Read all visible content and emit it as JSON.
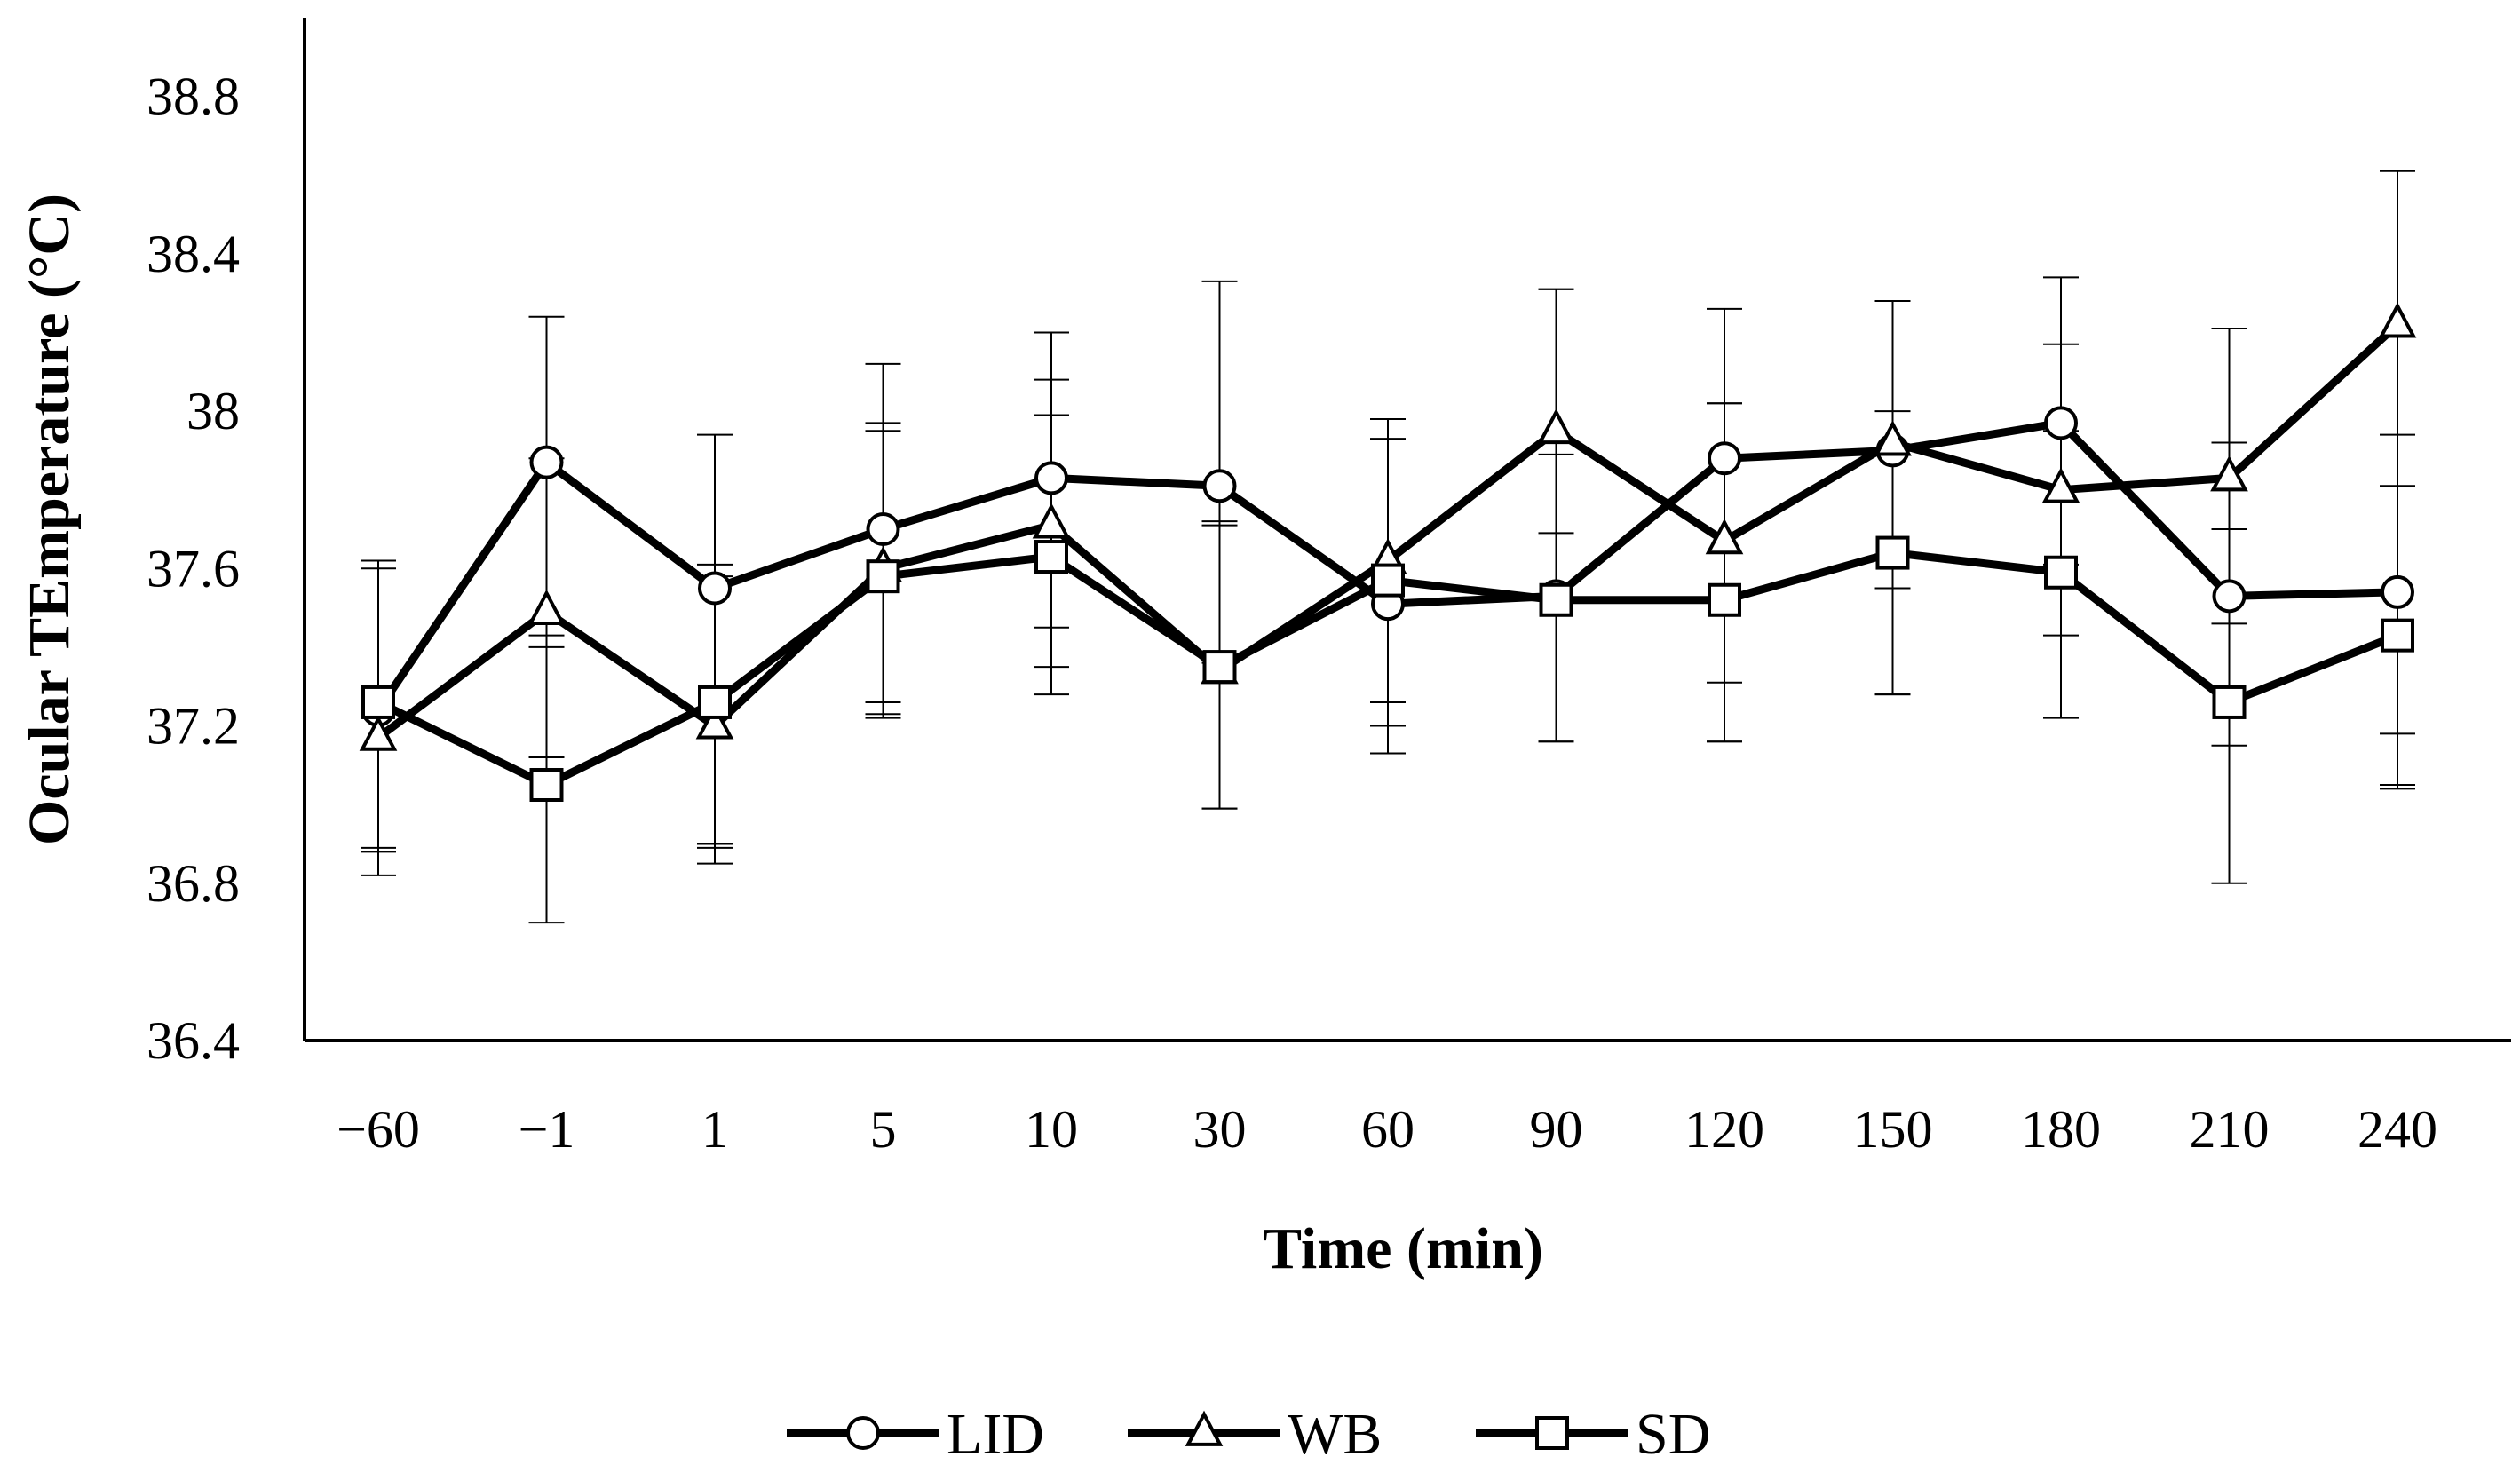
{
  "chart_data": {
    "type": "line",
    "title": "",
    "xlabel": "Time (min)",
    "ylabel": "Ocular TEmperature (°C)",
    "categories": [
      "−60",
      "−1",
      "1",
      "5",
      "10",
      "30",
      "60",
      "90",
      "120",
      "150",
      "180",
      "210",
      "240"
    ],
    "ylim": [
      36.4,
      39.0
    ],
    "yticks": [
      "36.4",
      "36.8",
      "37.2",
      "37.6",
      "38",
      "38.4",
      "38.8"
    ],
    "ytick_values": [
      36.4,
      36.8,
      37.2,
      37.6,
      38.0,
      38.4,
      38.8
    ],
    "grid": false,
    "legend_position": "bottom-center",
    "series": [
      {
        "name": "LID",
        "marker": "circle",
        "values": [
          37.24,
          37.87,
          37.55,
          37.7,
          37.83,
          37.81,
          37.51,
          37.53,
          37.88,
          37.9,
          37.97,
          37.53,
          37.54
        ],
        "err_low": [
          36.82,
          37.43,
          36.9,
          37.26,
          37.45,
          37.36,
          37.13,
          37.16,
          37.31,
          37.55,
          37.61,
          37.15,
          37.18
        ],
        "err_high": [
          37.62,
          38.24,
          37.94,
          38.12,
          38.2,
          38.33,
          37.98,
          38.31,
          38.26,
          38.28,
          38.34,
          38.21,
          37.94
        ]
      },
      {
        "name": "WB",
        "marker": "triangle",
        "values": [
          37.17,
          37.49,
          37.2,
          37.6,
          37.71,
          37.34,
          37.62,
          37.95,
          37.67,
          37.92,
          37.8,
          37.83,
          38.22
        ],
        "err_low": [
          36.89,
          37.12,
          36.85,
          37.22,
          37.35,
          36.99,
          37.26,
          37.69,
          37.16,
          37.28,
          37.43,
          37.46,
          37.05
        ],
        "err_high": [
          37.6,
          37.88,
          37.58,
          37.97,
          38.08,
          37.71,
          37.98,
          38.31,
          38.02,
          38.28,
          38.17,
          37.92,
          38.61
        ]
      },
      {
        "name": "SD",
        "marker": "square",
        "values": [
          37.26,
          37.05,
          37.26,
          37.58,
          37.63,
          37.35,
          37.57,
          37.52,
          37.52,
          37.64,
          37.59,
          37.26,
          37.43
        ],
        "err_low": [
          36.88,
          36.7,
          36.89,
          37.23,
          37.28,
          36.99,
          37.2,
          37.16,
          37.16,
          37.28,
          37.22,
          36.8,
          37.04
        ],
        "err_high": [
          37.62,
          37.4,
          37.61,
          37.95,
          37.99,
          37.72,
          37.93,
          37.89,
          38.02,
          38.0,
          37.95,
          37.7,
          37.81
        ]
      }
    ]
  }
}
